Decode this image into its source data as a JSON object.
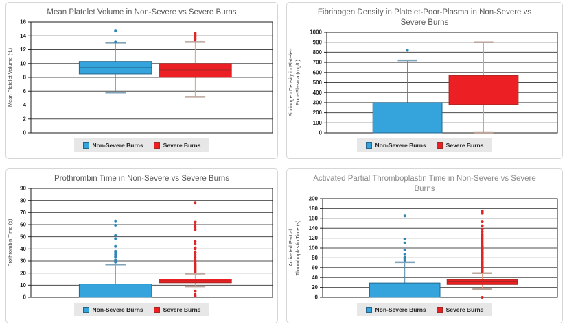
{
  "legend": {
    "items": [
      {
        "label": "Non-Severe Burns",
        "color": "#35a3dc",
        "border": "#22678b"
      },
      {
        "label": "Severe Burns",
        "color": "#ec2024",
        "border": "#9e2a23"
      }
    ]
  },
  "chart_data": [
    {
      "type": "boxplot",
      "title": "Mean Platelet Volume in Non-Severe vs Severe Burns",
      "title_color": "#595959",
      "ylabel": "Mean Platelet Volume (fL)",
      "ylabel_lines": [
        "Mean Platelet Volume (fL)"
      ],
      "ylim": [
        0,
        16
      ],
      "ytick_step": 2,
      "grid": true,
      "legend_position": "bottom",
      "series": [
        {
          "name": "Non-Severe Burns",
          "fill": "#35a3dc",
          "stroke": "#22678b",
          "whisker": "#4f85a5",
          "cap": "#7fa3b8",
          "dot": "#2e86b5",
          "low": 5.8,
          "q1": 8.5,
          "median": 9.4,
          "q3": 10.3,
          "high": 13.0,
          "outliers": [
            13.1,
            14.7
          ]
        },
        {
          "name": "Severe Burns",
          "fill": "#ec2024",
          "stroke": "#9e2a23",
          "whisker": "#e9967e",
          "cap": "#bca59b",
          "dot": "#e02424",
          "low": 5.2,
          "q1": 8.0,
          "median": 9.1,
          "q3": 10.0,
          "high": 13.1,
          "outliers": [
            13.4,
            13.6,
            13.9,
            14.1,
            14.4
          ]
        }
      ]
    },
    {
      "type": "boxplot",
      "title": "Fibrinogen Density in Platelet-Poor-Plasma in Non-Severe vs Severe Burns",
      "title_color": "#595959",
      "ylabel": "Fibrinogen Density in Platelet-Poor-Plasma (mg/L)",
      "ylabel_lines": [
        "Fibrinogen Density in Platelet-",
        "Poor-Plasma (mg/L)"
      ],
      "ylim": [
        0,
        1000
      ],
      "ytick_step": 100,
      "grid": true,
      "legend_position": "bottom",
      "series": [
        {
          "name": "Non-Severe Burns",
          "fill": "#35a3dc",
          "stroke": "#22678b",
          "whisker": "#4f85a5",
          "cap": "#7fa3b8",
          "dot": "#2e86b5",
          "low": 0,
          "q1": 0,
          "median": null,
          "q3": 300,
          "high": 720,
          "outliers": [
            820
          ]
        },
        {
          "name": "Severe Burns",
          "fill": "#ec2024",
          "stroke": "#9e2a23",
          "whisker": "#e9967e",
          "cap": "#bca59b",
          "dot": "#e02424",
          "low": 0,
          "q1": 280,
          "median": 425,
          "q3": 570,
          "high": 900,
          "outliers": []
        }
      ]
    },
    {
      "type": "boxplot",
      "title": "Prothrombin Time in Non-Severe vs Severe Burns",
      "title_color": "#595959",
      "ylabel": "Prothrombin Time (s)",
      "ylabel_lines": [
        "Prothrombin Time (s)"
      ],
      "ylim": [
        0,
        90
      ],
      "ytick_step": 10,
      "grid": true,
      "legend_position": "bottom",
      "series": [
        {
          "name": "Non-Severe Burns",
          "fill": "#35a3dc",
          "stroke": "#22678b",
          "whisker": "#4f85a5",
          "cap": "#7fa3b8",
          "dot": "#2e86b5",
          "low": 0,
          "q1": 0,
          "median": null,
          "q3": 11,
          "high": 27,
          "outliers": [
            29,
            31,
            33.5,
            35,
            36.5,
            38,
            42,
            48.5,
            51,
            59.5,
            63
          ]
        },
        {
          "name": "Severe Burns",
          "fill": "#ec2024",
          "stroke": "#9e2a23",
          "whisker": "#e9967e",
          "cap": "#bca59b",
          "dot": "#e02424",
          "low": 9,
          "q1": 12,
          "median": 13.5,
          "q3": 15,
          "high": 19.5,
          "outliers": [
            1,
            2.5,
            5,
            21,
            22,
            23,
            24,
            25,
            26,
            27,
            28,
            29.5,
            31,
            33,
            35,
            37,
            40,
            41,
            44,
            46,
            56,
            58,
            60,
            62.5,
            78
          ]
        }
      ]
    },
    {
      "type": "boxplot",
      "title": "Activated Partial Thromboplastin Time in Non-Severe vs Severe Burns",
      "title_color": "#8a8a8a",
      "ylabel": "Activated Partial Thromboplastin Time (s)",
      "ylabel_lines": [
        "Activated Partial",
        "Thromboplastin Time (s)"
      ],
      "ylim": [
        0,
        200
      ],
      "ytick_step": 20,
      "grid": true,
      "legend_position": "bottom",
      "series": [
        {
          "name": "Non-Severe Burns",
          "fill": "#35a3dc",
          "stroke": "#22678b",
          "whisker": "#4f85a5",
          "cap": "#7fa3b8",
          "dot": "#2e86b5",
          "low": 0,
          "q1": 0,
          "median": null,
          "q3": 29,
          "high": 71,
          "outliers": [
            75,
            78,
            81,
            87,
            96,
            110,
            118,
            165
          ]
        },
        {
          "name": "Severe Burns",
          "fill": "#ec2024",
          "stroke": "#9e2a23",
          "whisker": "#e9967e",
          "cap": "#bca59b",
          "dot": "#e02424",
          "low": 17,
          "q1": 26,
          "median": 31.5,
          "q3": 36,
          "high": 49,
          "outliers": [
            0,
            52,
            55,
            58,
            61,
            64,
            67,
            70,
            73,
            76,
            79,
            82,
            85,
            88,
            91,
            94,
            97,
            100,
            104,
            108,
            112,
            116,
            120,
            124,
            128,
            133,
            138,
            145,
            154,
            170,
            173,
            175
          ]
        }
      ]
    }
  ]
}
